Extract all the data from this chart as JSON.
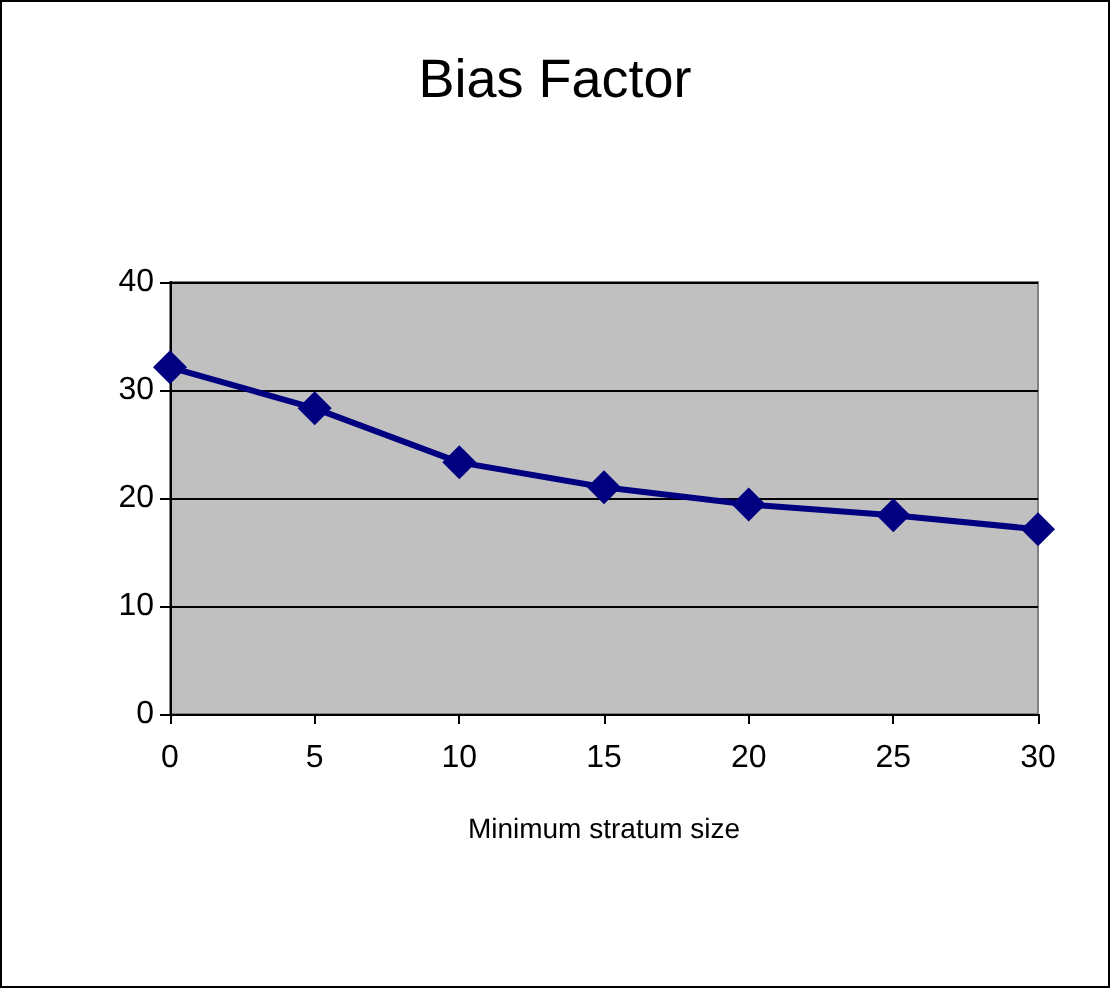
{
  "chart_data": {
    "type": "line",
    "title": "Bias Factor",
    "xlabel": "Minimum stratum size",
    "x": [
      0,
      5,
      10,
      15,
      20,
      25,
      30
    ],
    "series": [
      {
        "color": "#000080",
        "values": [
          32.1,
          28.3,
          23.3,
          21.0,
          19.4,
          18.4,
          17.1
        ]
      }
    ],
    "xlim": [
      0,
      30
    ],
    "xticks": [
      0,
      5,
      10,
      15,
      20,
      25,
      30
    ],
    "ylim": [
      0,
      40
    ],
    "yticks": [
      0,
      10,
      20,
      30,
      40
    ],
    "grid": "y",
    "marker": "diamond",
    "line_style": "solid"
  }
}
